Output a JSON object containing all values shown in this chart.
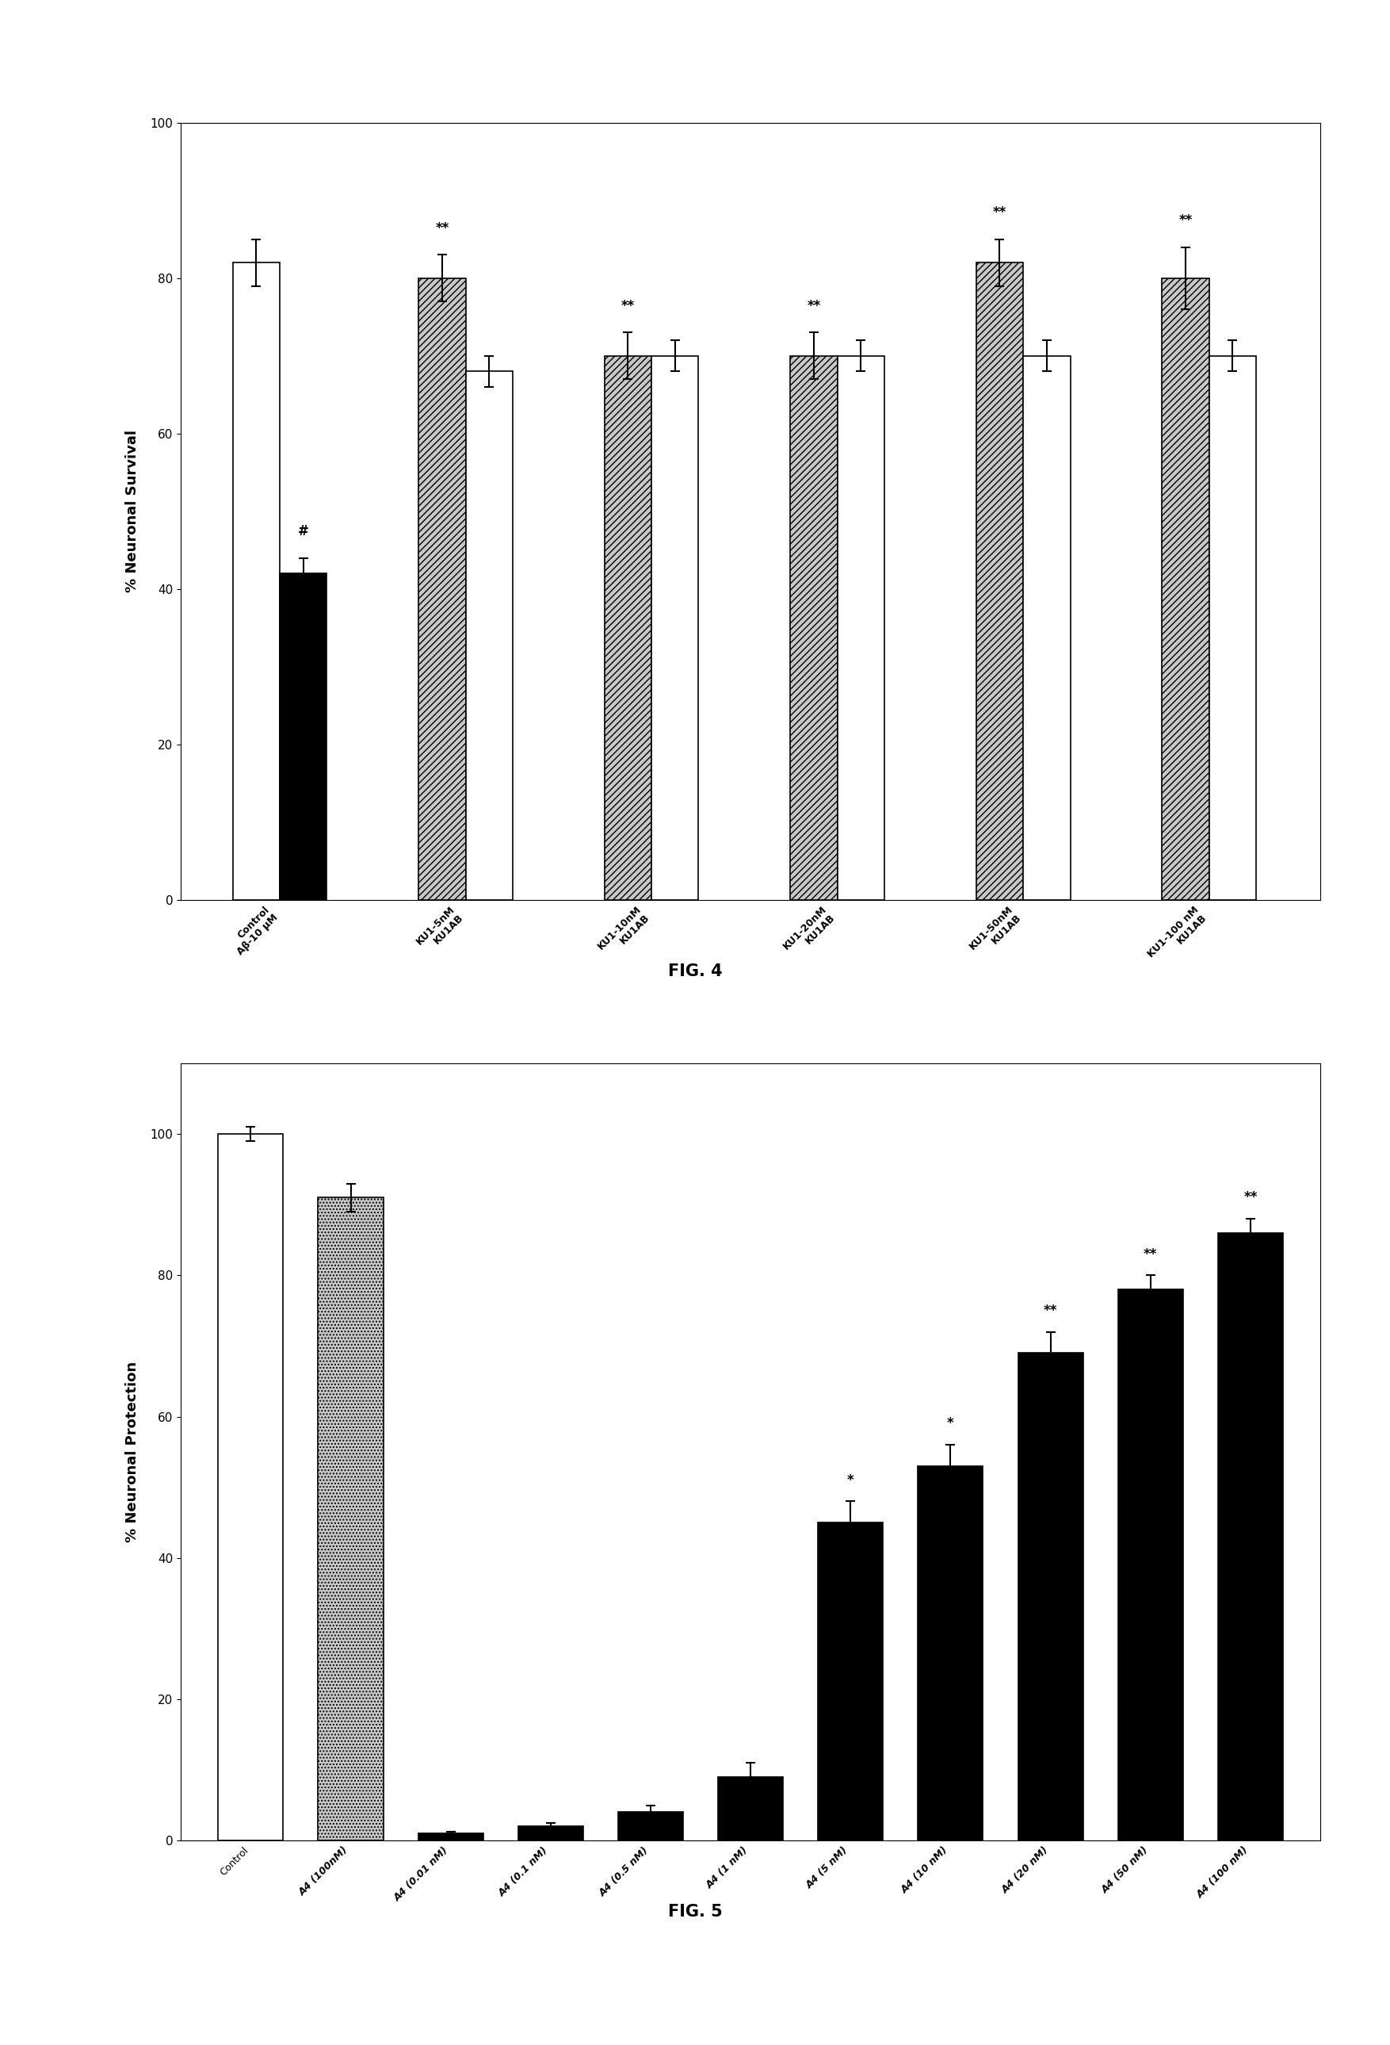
{
  "fig4": {
    "ylabel": "% Neuronal Survival",
    "ylim": [
      0,
      100
    ],
    "yticks": [
      0,
      20,
      40,
      60,
      80,
      100
    ],
    "bar_values": [
      82,
      42,
      80,
      68,
      70,
      70,
      70,
      70,
      82,
      70,
      80,
      70
    ],
    "bar_errors": [
      3,
      2,
      3,
      2,
      3,
      2,
      3,
      2,
      3,
      2,
      4,
      2
    ],
    "bar_colors": [
      "white",
      "black",
      "gray",
      "white",
      "gray",
      "white",
      "gray",
      "white",
      "gray",
      "white",
      "gray",
      "white"
    ],
    "annotations": {
      "1": "#",
      "2": "**",
      "4": "**",
      "6": "**",
      "8": "**",
      "10": "**"
    },
    "group_xlabels": [
      "Control\nAβ-10 μM",
      "KU1-5nM\nKU1AB",
      "KU1-10nM\nKU1AB",
      "KU1-20nM\nKU1AB",
      "KU1-50nM\nKU1AB",
      "KU1-100 nM\nKU1AB"
    ],
    "fig_label": "FIG. 4"
  },
  "fig5": {
    "ylabel": "% Neuronal Protection",
    "ylim": [
      0,
      110
    ],
    "yticks": [
      0,
      20,
      40,
      60,
      80,
      100
    ],
    "categories": [
      "Control",
      "A4 (100nM)",
      "A4 (0.01 nM)",
      "A4 (0.1 nM)",
      "A4 (0.5 nM)",
      "A4 (1 nM)",
      "A4 (5 nM)",
      "A4 (10 nM)",
      "A4 (20 nM)",
      "A4 (50 nM)",
      "A4 (100 nM)"
    ],
    "bar_values": [
      100,
      91,
      1,
      2,
      4,
      9,
      45,
      53,
      69,
      78,
      86
    ],
    "bar_errors": [
      1,
      2,
      0.3,
      0.5,
      1,
      2,
      3,
      3,
      3,
      2,
      2
    ],
    "bar_colors": [
      "white",
      "gray_hatch",
      "black",
      "black",
      "black",
      "black",
      "black",
      "black",
      "black",
      "black",
      "black"
    ],
    "annotations": {
      "6": "*",
      "7": "*",
      "8": "**",
      "9": "**",
      "10": "**"
    },
    "fig_label": "FIG. 5"
  }
}
